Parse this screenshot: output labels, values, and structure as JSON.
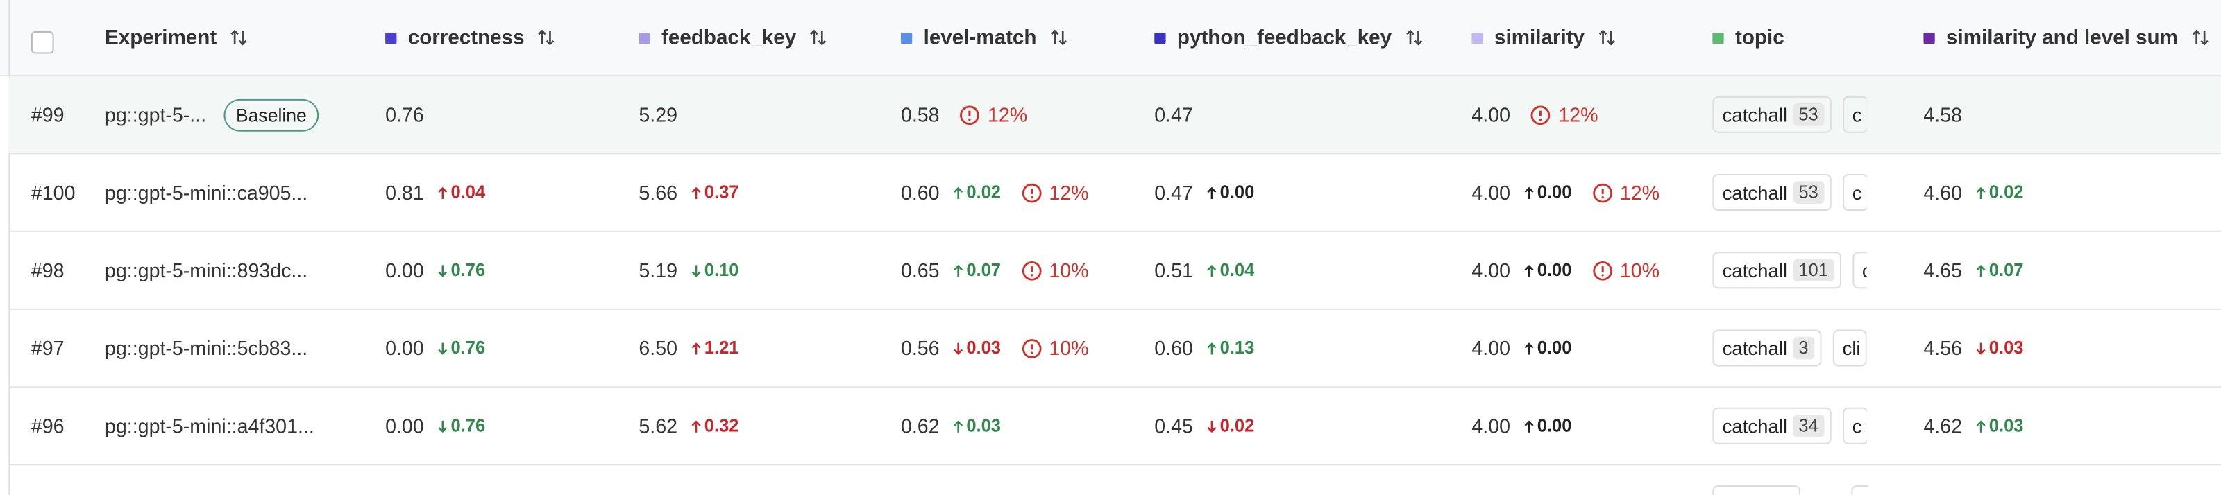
{
  "table": {
    "columns": [
      {
        "name": "Experiment"
      },
      {
        "name": "correctness",
        "color": "#4b3fcf"
      },
      {
        "name": "feedback_key",
        "color": "#a99ae6"
      },
      {
        "name": "level-match",
        "color": "#5a8fe6"
      },
      {
        "name": "python_feedback_key",
        "color": "#3a33c2"
      },
      {
        "name": "similarity",
        "color": "#c2b8f0"
      },
      {
        "name": "topic",
        "color": "#5db872"
      },
      {
        "name": "similarity and level sum",
        "color": "#6b2aa8"
      }
    ],
    "rows": [
      {
        "id": "#99",
        "experiment": "pg::gpt-5-...",
        "badge": "Baseline",
        "cells": [
          {
            "value": "0.76"
          },
          {
            "value": "5.29"
          },
          {
            "value": "0.58",
            "warning": "12%"
          },
          {
            "value": "0.47"
          },
          {
            "value": "4.00",
            "warning": "12%"
          },
          {
            "tags": [
              {
                "label": "catchall",
                "count": "53"
              },
              {
                "label": "c"
              }
            ]
          },
          {
            "value": "4.58"
          }
        ]
      },
      {
        "id": "#100",
        "experiment": "pg::gpt-5-mini::ca905...",
        "cells": [
          {
            "value": "0.81",
            "delta": {
              "text": "0.04",
              "arrow": "up",
              "tone": "red"
            }
          },
          {
            "value": "5.66",
            "delta": {
              "text": "0.37",
              "arrow": "up",
              "tone": "red"
            }
          },
          {
            "value": "0.60",
            "delta": {
              "text": "0.02",
              "arrow": "up",
              "tone": "green"
            },
            "warning": "12%"
          },
          {
            "value": "0.47",
            "delta": {
              "text": "0.00",
              "arrow": "up",
              "tone": "neutral"
            }
          },
          {
            "value": "4.00",
            "delta": {
              "text": "0.00",
              "arrow": "up",
              "tone": "neutral"
            },
            "warning": "12%"
          },
          {
            "tags": [
              {
                "label": "catchall",
                "count": "53"
              },
              {
                "label": "c"
              }
            ]
          },
          {
            "value": "4.60",
            "delta": {
              "text": "0.02",
              "arrow": "up",
              "tone": "green"
            }
          }
        ]
      },
      {
        "id": "#98",
        "experiment": "pg::gpt-5-mini::893dc...",
        "cells": [
          {
            "value": "0.00",
            "delta": {
              "text": "0.76",
              "arrow": "down",
              "tone": "green"
            }
          },
          {
            "value": "5.19",
            "delta": {
              "text": "0.10",
              "arrow": "down",
              "tone": "green"
            }
          },
          {
            "value": "0.65",
            "delta": {
              "text": "0.07",
              "arrow": "up",
              "tone": "green"
            },
            "warning": "10%"
          },
          {
            "value": "0.51",
            "delta": {
              "text": "0.04",
              "arrow": "up",
              "tone": "green"
            }
          },
          {
            "value": "4.00",
            "delta": {
              "text": "0.00",
              "arrow": "up",
              "tone": "neutral"
            },
            "warning": "10%"
          },
          {
            "tags": [
              {
                "label": "catchall",
                "count": "101"
              },
              {
                "label": "c"
              }
            ]
          },
          {
            "value": "4.65",
            "delta": {
              "text": "0.07",
              "arrow": "up",
              "tone": "green"
            }
          }
        ]
      },
      {
        "id": "#97",
        "experiment": "pg::gpt-5-mini::5cb83...",
        "cells": [
          {
            "value": "0.00",
            "delta": {
              "text": "0.76",
              "arrow": "down",
              "tone": "green"
            }
          },
          {
            "value": "6.50",
            "delta": {
              "text": "1.21",
              "arrow": "up",
              "tone": "red"
            }
          },
          {
            "value": "0.56",
            "delta": {
              "text": "0.03",
              "arrow": "down",
              "tone": "red"
            },
            "warning": "10%"
          },
          {
            "value": "0.60",
            "delta": {
              "text": "0.13",
              "arrow": "up",
              "tone": "green"
            }
          },
          {
            "value": "4.00",
            "delta": {
              "text": "0.00",
              "arrow": "up",
              "tone": "neutral"
            }
          },
          {
            "tags": [
              {
                "label": "catchall",
                "count": "3"
              },
              {
                "label": "cli"
              }
            ]
          },
          {
            "value": "4.56",
            "delta": {
              "text": "0.03",
              "arrow": "down",
              "tone": "red"
            }
          }
        ]
      },
      {
        "id": "#96",
        "experiment": "pg::gpt-5-mini::a4f301...",
        "cells": [
          {
            "value": "0.00",
            "delta": {
              "text": "0.76",
              "arrow": "down",
              "tone": "green"
            }
          },
          {
            "value": "5.62",
            "delta": {
              "text": "0.32",
              "arrow": "up",
              "tone": "red"
            }
          },
          {
            "value": "0.62",
            "delta": {
              "text": "0.03",
              "arrow": "up",
              "tone": "green"
            }
          },
          {
            "value": "0.45",
            "delta": {
              "text": "0.02",
              "arrow": "down",
              "tone": "red"
            }
          },
          {
            "value": "4.00",
            "delta": {
              "text": "0.00",
              "arrow": "up",
              "tone": "neutral"
            }
          },
          {
            "tags": [
              {
                "label": "catchall",
                "count": "34"
              },
              {
                "label": "c"
              }
            ]
          },
          {
            "value": "4.62",
            "delta": {
              "text": "0.03",
              "arrow": "up",
              "tone": "green"
            }
          }
        ]
      }
    ]
  }
}
